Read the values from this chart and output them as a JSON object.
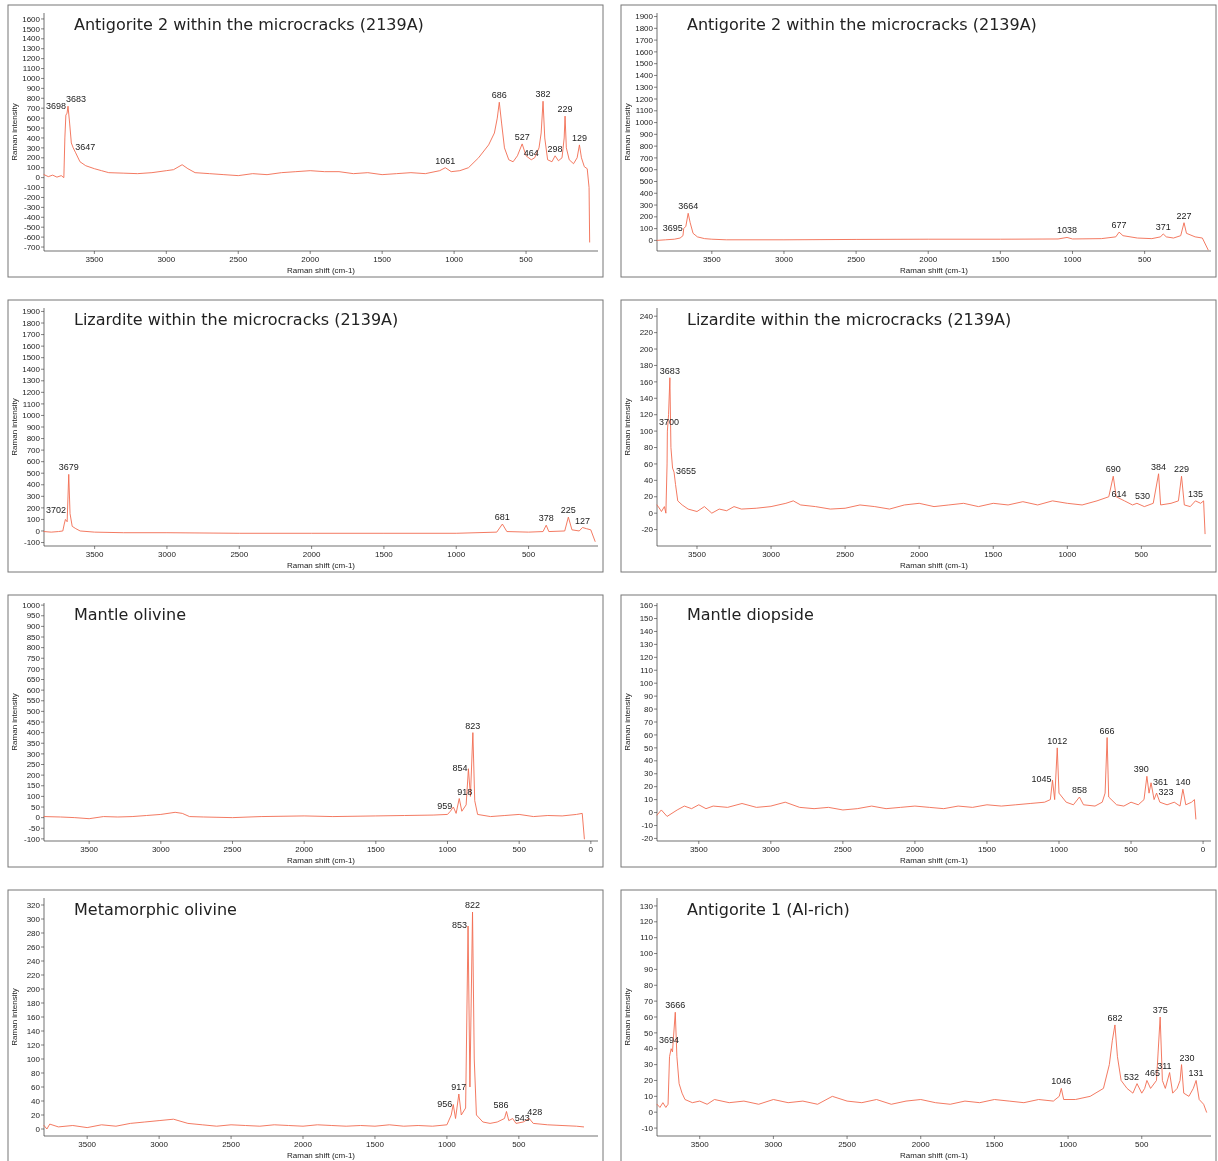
{
  "chart_data": [
    {
      "type": "line",
      "title": "Antigorite 2 within the microcracks (2139A)",
      "xlabel": "Raman shift (cm-1)",
      "ylabel": "Raman intensity",
      "xlim": [
        3850,
        0
      ],
      "ylim": [
        -740,
        1660
      ],
      "xticks": [
        3500,
        3000,
        2500,
        2000,
        1500,
        1000,
        500
      ],
      "yticks": [
        -700,
        -600,
        -500,
        -400,
        -300,
        -200,
        -100,
        0,
        100,
        200,
        300,
        400,
        500,
        600,
        700,
        800,
        900,
        1000,
        1100,
        1200,
        1300,
        1400,
        1500,
        1600
      ],
      "series": [
        {
          "color": "#f26b50",
          "x": [
            3850,
            3820,
            3790,
            3760,
            3730,
            3712,
            3705,
            3698,
            3690,
            3683,
            3672,
            3660,
            3647,
            3630,
            3600,
            3560,
            3500,
            3450,
            3400,
            3300,
            3200,
            3100,
            3000,
            2950,
            2890,
            2850,
            2800,
            2700,
            2600,
            2500,
            2400,
            2300,
            2200,
            2100,
            2000,
            1900,
            1800,
            1700,
            1600,
            1500,
            1400,
            1300,
            1200,
            1100,
            1061,
            1020,
            960,
            900,
            830,
            760,
            720,
            700,
            686,
            670,
            650,
            620,
            590,
            560,
            527,
            500,
            464,
            440,
            410,
            395,
            382,
            370,
            350,
            320,
            298,
            275,
            250,
            235,
            229,
            220,
            200,
            170,
            145,
            129,
            115,
            95,
            75,
            62,
            58
          ],
          "values": [
            30,
            10,
            25,
            5,
            20,
            0,
            400,
            630,
            650,
            720,
            550,
            350,
            300,
            250,
            160,
            120,
            90,
            70,
            50,
            45,
            40,
            50,
            70,
            80,
            130,
            90,
            50,
            40,
            30,
            20,
            40,
            30,
            50,
            60,
            70,
            60,
            60,
            40,
            50,
            30,
            40,
            50,
            40,
            70,
            100,
            60,
            70,
            100,
            200,
            330,
            450,
            600,
            760,
            550,
            300,
            180,
            160,
            220,
            340,
            220,
            180,
            200,
            300,
            450,
            770,
            400,
            180,
            160,
            220,
            170,
            200,
            400,
            620,
            300,
            180,
            140,
            200,
            330,
            200,
            110,
            90,
            -100,
            -650
          ]
        }
      ],
      "annotations": [
        {
          "text": "3683",
          "x": 3683,
          "y": 720
        },
        {
          "text": "3698",
          "x": 3698,
          "y": 630
        },
        {
          "text": "3647",
          "x": 3647,
          "y": 300
        },
        {
          "text": "1061",
          "x": 1061,
          "y": 100
        },
        {
          "text": "686",
          "x": 686,
          "y": 760
        },
        {
          "text": "527",
          "x": 527,
          "y": 340
        },
        {
          "text": "464",
          "x": 464,
          "y": 180
        },
        {
          "text": "382",
          "x": 382,
          "y": 770
        },
        {
          "text": "298",
          "x": 298,
          "y": 220
        },
        {
          "text": "229",
          "x": 229,
          "y": 620
        },
        {
          "text": "129",
          "x": 129,
          "y": 330
        }
      ]
    },
    {
      "type": "line",
      "title": "Antigorite 2 within the microcracks (2139A)",
      "xlabel": "Raman shift (cm-1)",
      "ylabel": "Raman intensity",
      "xlim": [
        3880,
        40
      ],
      "ylim": [
        -90,
        1930
      ],
      "xticks": [
        3500,
        3000,
        2500,
        2000,
        1500,
        1000,
        500
      ],
      "yticks": [
        0,
        100,
        200,
        300,
        400,
        500,
        600,
        700,
        800,
        900,
        1000,
        1100,
        1200,
        1300,
        1400,
        1500,
        1600,
        1700,
        1800,
        1900
      ],
      "series": [
        {
          "color": "#f26b50",
          "x": [
            3880,
            3820,
            3760,
            3720,
            3700,
            3695,
            3680,
            3664,
            3650,
            3630,
            3600,
            3550,
            3500,
            3400,
            3000,
            2500,
            2000,
            1500,
            1100,
            1038,
            1000,
            800,
            700,
            677,
            650,
            550,
            450,
            390,
            371,
            350,
            300,
            250,
            227,
            210,
            150,
            100,
            60
          ],
          "values": [
            0,
            5,
            10,
            20,
            40,
            100,
            120,
            230,
            150,
            60,
            30,
            15,
            10,
            5,
            5,
            8,
            10,
            10,
            12,
            25,
            12,
            15,
            30,
            70,
            40,
            20,
            15,
            30,
            55,
            30,
            20,
            40,
            150,
            60,
            30,
            20,
            -80
          ]
        }
      ],
      "annotations": [
        {
          "text": "3664",
          "x": 3664,
          "y": 230
        },
        {
          "text": "3695",
          "x": 3695,
          "y": 100
        },
        {
          "text": "1038",
          "x": 1038,
          "y": 25
        },
        {
          "text": "677",
          "x": 677,
          "y": 70
        },
        {
          "text": "371",
          "x": 371,
          "y": 55
        },
        {
          "text": "227",
          "x": 227,
          "y": 150
        }
      ]
    },
    {
      "type": "line",
      "title": "Lizardite within the microcracks (2139A)",
      "xlabel": "Raman shift (cm-1)",
      "ylabel": "Raman intensity",
      "xlim": [
        3850,
        20
      ],
      "ylim": [
        -130,
        1930
      ],
      "xticks": [
        3500,
        3000,
        2500,
        2000,
        1500,
        1000,
        500
      ],
      "yticks": [
        -100,
        0,
        100,
        200,
        300,
        400,
        500,
        600,
        700,
        800,
        900,
        1000,
        1100,
        1200,
        1300,
        1400,
        1500,
        1600,
        1700,
        1800,
        1900
      ],
      "series": [
        {
          "color": "#f26b50",
          "x": [
            3850,
            3800,
            3750,
            3720,
            3710,
            3702,
            3690,
            3679,
            3670,
            3655,
            3630,
            3600,
            3500,
            3300,
            3000,
            2500,
            2000,
            1500,
            1000,
            720,
            681,
            650,
            500,
            400,
            378,
            360,
            250,
            225,
            200,
            150,
            127,
            100,
            70,
            40
          ],
          "values": [
            -5,
            -10,
            -5,
            0,
            60,
            100,
            80,
            490,
            150,
            40,
            20,
            0,
            -10,
            -15,
            -15,
            -20,
            -20,
            -20,
            -20,
            -10,
            60,
            -5,
            -10,
            -5,
            50,
            -5,
            0,
            120,
            10,
            0,
            30,
            20,
            10,
            -90
          ]
        }
      ],
      "annotations": [
        {
          "text": "3679",
          "x": 3679,
          "y": 490
        },
        {
          "text": "3702",
          "x": 3702,
          "y": 100
        },
        {
          "text": "681",
          "x": 681,
          "y": 60
        },
        {
          "text": "378",
          "x": 378,
          "y": 50
        },
        {
          "text": "225",
          "x": 225,
          "y": 120
        },
        {
          "text": "127",
          "x": 127,
          "y": 30
        }
      ]
    },
    {
      "type": "line",
      "title": "Lizardite within the microcracks (2139A)",
      "xlabel": "Raman shift (cm-1)",
      "ylabel": "Raman intensity",
      "xlim": [
        3770,
        30
      ],
      "ylim": [
        -40,
        250
      ],
      "xticks": [
        3500,
        3000,
        2500,
        2000,
        1500,
        1000,
        500
      ],
      "yticks": [
        -20,
        0,
        20,
        40,
        60,
        80,
        100,
        120,
        140,
        160,
        180,
        200,
        220,
        240
      ],
      "series": [
        {
          "color": "#f26b50",
          "x": [
            3770,
            3750,
            3740,
            3720,
            3710,
            3702,
            3700,
            3692,
            3683,
            3676,
            3665,
            3655,
            3645,
            3630,
            3600,
            3560,
            3500,
            3450,
            3400,
            3350,
            3300,
            3250,
            3200,
            3100,
            3000,
            2900,
            2850,
            2800,
            2700,
            2600,
            2500,
            2400,
            2300,
            2200,
            2100,
            2000,
            1900,
            1800,
            1700,
            1600,
            1500,
            1400,
            1300,
            1200,
            1100,
            1000,
            900,
            800,
            720,
            690,
            670,
            614,
            560,
            530,
            480,
            420,
            384,
            370,
            300,
            250,
            229,
            210,
            170,
            135,
            100,
            80,
            70
          ],
          "values": [
            10,
            5,
            2,
            8,
            0,
            60,
            100,
            120,
            165,
            80,
            55,
            50,
            35,
            15,
            10,
            5,
            2,
            8,
            0,
            5,
            3,
            8,
            5,
            6,
            8,
            12,
            15,
            10,
            8,
            5,
            6,
            10,
            8,
            5,
            10,
            12,
            8,
            10,
            12,
            8,
            12,
            10,
            14,
            10,
            15,
            12,
            10,
            15,
            20,
            45,
            20,
            15,
            10,
            12,
            8,
            12,
            48,
            10,
            12,
            15,
            45,
            10,
            8,
            15,
            12,
            15,
            -25
          ]
        }
      ],
      "annotations": [
        {
          "text": "3683",
          "x": 3683,
          "y": 165
        },
        {
          "text": "3700",
          "x": 3700,
          "y": 100
        },
        {
          "text": "3655",
          "x": 3655,
          "y": 50
        },
        {
          "text": "690",
          "x": 690,
          "y": 45
        },
        {
          "text": "614",
          "x": 614,
          "y": 15
        },
        {
          "text": "530",
          "x": 530,
          "y": 12
        },
        {
          "text": "384",
          "x": 384,
          "y": 48
        },
        {
          "text": "229",
          "x": 229,
          "y": 45
        },
        {
          "text": "135",
          "x": 135,
          "y": 15
        }
      ]
    },
    {
      "type": "line",
      "title": "Mantle olivine",
      "xlabel": "Raman shift (cm-1)",
      "ylabel": "Raman intensity",
      "xlim": [
        3815,
        -50
      ],
      "ylim": [
        -110,
        1010
      ],
      "xticks": [
        3500,
        3000,
        2500,
        2000,
        1500,
        1000,
        500,
        0
      ],
      "yticks": [
        -100,
        -50,
        0,
        50,
        100,
        150,
        200,
        250,
        300,
        350,
        400,
        450,
        500,
        550,
        600,
        650,
        700,
        750,
        800,
        850,
        900,
        950,
        1000
      ],
      "series": [
        {
          "color": "#f26b50",
          "x": [
            3815,
            3700,
            3600,
            3500,
            3400,
            3300,
            3200,
            3100,
            3000,
            2900,
            2850,
            2800,
            2700,
            2500,
            2300,
            2000,
            1800,
            1500,
            1300,
            1100,
            1000,
            980,
            959,
            940,
            918,
            900,
            870,
            854,
            840,
            823,
            810,
            790,
            700,
            600,
            500,
            400,
            300,
            200,
            100,
            60,
            45
          ],
          "values": [
            5,
            3,
            0,
            -5,
            5,
            3,
            5,
            10,
            15,
            25,
            20,
            5,
            3,
            0,
            5,
            8,
            5,
            8,
            10,
            12,
            15,
            30,
            50,
            20,
            90,
            30,
            60,
            230,
            100,
            400,
            80,
            15,
            5,
            10,
            15,
            5,
            10,
            8,
            15,
            20,
            -100
          ]
        }
      ],
      "annotations": [
        {
          "text": "823",
          "x": 823,
          "y": 400
        },
        {
          "text": "854",
          "x": 854,
          "y": 230
        },
        {
          "text": "918",
          "x": 918,
          "y": 90
        },
        {
          "text": "959",
          "x": 959,
          "y": 50
        }
      ]
    },
    {
      "type": "line",
      "title": "Mantle diopside",
      "xlabel": "Raman shift (cm-1)",
      "ylabel": "Raman intensity",
      "xlim": [
        3790,
        -55
      ],
      "ylim": [
        -22,
        162
      ],
      "xticks": [
        3500,
        3000,
        2500,
        2000,
        1500,
        1000,
        500,
        0
      ],
      "yticks": [
        -20,
        -10,
        0,
        10,
        20,
        30,
        40,
        50,
        60,
        70,
        80,
        90,
        100,
        110,
        120,
        130,
        140,
        150,
        160
      ],
      "series": [
        {
          "color": "#f26b50",
          "x": [
            3790,
            3760,
            3720,
            3650,
            3600,
            3550,
            3500,
            3450,
            3400,
            3300,
            3200,
            3100,
            3000,
            2900,
            2800,
            2700,
            2600,
            2500,
            2400,
            2300,
            2200,
            2100,
            2000,
            1900,
            1800,
            1700,
            1600,
            1500,
            1400,
            1300,
            1200,
            1100,
            1060,
            1045,
            1030,
            1012,
            1000,
            950,
            900,
            858,
            830,
            750,
            700,
            680,
            666,
            655,
            600,
            550,
            500,
            450,
            410,
            390,
            375,
            361,
            340,
            323,
            300,
            250,
            200,
            160,
            140,
            120,
            80,
            60,
            50
          ],
          "values": [
            -2,
            2,
            -3,
            2,
            5,
            3,
            6,
            3,
            5,
            4,
            7,
            4,
            5,
            8,
            4,
            3,
            4,
            2,
            3,
            5,
            3,
            4,
            5,
            4,
            3,
            5,
            4,
            6,
            5,
            6,
            7,
            8,
            10,
            25,
            10,
            50,
            15,
            8,
            6,
            12,
            6,
            5,
            8,
            15,
            58,
            12,
            6,
            5,
            8,
            6,
            10,
            28,
            15,
            23,
            10,
            15,
            8,
            6,
            8,
            5,
            18,
            6,
            8,
            10,
            -5
          ]
        }
      ],
      "annotations": [
        {
          "text": "1012",
          "x": 1012,
          "y": 50
        },
        {
          "text": "1045",
          "x": 1045,
          "y": 25
        },
        {
          "text": "858",
          "x": 858,
          "y": 12
        },
        {
          "text": "666",
          "x": 666,
          "y": 58
        },
        {
          "text": "390",
          "x": 390,
          "y": 28
        },
        {
          "text": "361",
          "x": 361,
          "y": 23
        },
        {
          "text": "323",
          "x": 323,
          "y": 15
        },
        {
          "text": "140",
          "x": 140,
          "y": 18
        }
      ]
    },
    {
      "type": "line",
      "title": "Metamorphic olivine",
      "xlabel": "Raman shift (cm-1)",
      "ylabel": "Raman intensity",
      "xlim": [
        3800,
        -50
      ],
      "ylim": [
        -10,
        330
      ],
      "xticks": [
        3500,
        3000,
        2500,
        2000,
        1500,
        1000,
        500
      ],
      "yticks": [
        0,
        20,
        40,
        60,
        80,
        100,
        120,
        140,
        160,
        180,
        200,
        220,
        240,
        260,
        280,
        300,
        320
      ],
      "series": [
        {
          "color": "#f26b50",
          "x": [
            3800,
            3780,
            3760,
            3700,
            3600,
            3500,
            3400,
            3300,
            3200,
            3100,
            3000,
            2900,
            2800,
            2700,
            2600,
            2500,
            2400,
            2300,
            2200,
            2100,
            2000,
            1900,
            1800,
            1700,
            1600,
            1500,
            1400,
            1300,
            1200,
            1100,
            1000,
            970,
            956,
            940,
            917,
            900,
            870,
            853,
            840,
            822,
            810,
            795,
            750,
            700,
            650,
            600,
            586,
            570,
            543,
            520,
            470,
            428,
            400,
            300,
            200,
            100,
            50
          ],
          "values": [
            5,
            0,
            7,
            3,
            5,
            2,
            6,
            4,
            8,
            10,
            12,
            14,
            8,
            6,
            4,
            6,
            5,
            4,
            6,
            5,
            4,
            6,
            5,
            4,
            5,
            4,
            6,
            4,
            5,
            4,
            6,
            20,
            35,
            15,
            50,
            20,
            30,
            290,
            60,
            310,
            100,
            20,
            10,
            8,
            10,
            15,
            25,
            12,
            15,
            8,
            10,
            15,
            8,
            6,
            5,
            4,
            3
          ]
        }
      ],
      "annotations": [
        {
          "text": "822",
          "x": 822,
          "y": 310
        },
        {
          "text": "853",
          "x": 853,
          "y": 290
        },
        {
          "text": "917",
          "x": 917,
          "y": 50
        },
        {
          "text": "956",
          "x": 956,
          "y": 35
        },
        {
          "text": "586",
          "x": 586,
          "y": 25
        },
        {
          "text": "543",
          "x": 543,
          "y": 15
        },
        {
          "text": "428",
          "x": 428,
          "y": 15
        }
      ]
    },
    {
      "type": "line",
      "title": "Antigorite 1 (Al-rich)",
      "xlabel": "Raman shift (cm-1)",
      "ylabel": "Raman intensity",
      "xlim": [
        3790,
        30
      ],
      "ylim": [
        -15,
        135
      ],
      "xticks": [
        3500,
        3000,
        2500,
        2000,
        1500,
        1000,
        500
      ],
      "yticks": [
        -10,
        0,
        10,
        20,
        30,
        40,
        50,
        60,
        70,
        80,
        90,
        100,
        110,
        120,
        130
      ],
      "series": [
        {
          "color": "#f26b50",
          "x": [
            3790,
            3770,
            3750,
            3730,
            3715,
            3705,
            3694,
            3685,
            3666,
            3655,
            3640,
            3620,
            3600,
            3550,
            3500,
            3450,
            3400,
            3300,
            3200,
            3100,
            3000,
            2900,
            2800,
            2700,
            2600,
            2500,
            2400,
            2300,
            2200,
            2100,
            2000,
            1900,
            1800,
            1700,
            1600,
            1500,
            1400,
            1300,
            1200,
            1100,
            1060,
            1046,
            1030,
            950,
            850,
            760,
            720,
            700,
            682,
            665,
            640,
            600,
            560,
            532,
            500,
            480,
            465,
            440,
            400,
            375,
            360,
            340,
            311,
            290,
            260,
            240,
            230,
            215,
            180,
            150,
            131,
            110,
            80,
            60
          ],
          "values": [
            5,
            3,
            6,
            3,
            5,
            35,
            40,
            38,
            63,
            35,
            18,
            12,
            8,
            6,
            7,
            5,
            8,
            6,
            7,
            5,
            8,
            6,
            7,
            5,
            10,
            7,
            6,
            8,
            5,
            7,
            8,
            6,
            5,
            7,
            6,
            8,
            7,
            6,
            8,
            7,
            10,
            15,
            8,
            8,
            10,
            15,
            30,
            45,
            55,
            35,
            20,
            15,
            12,
            18,
            12,
            15,
            20,
            15,
            20,
            60,
            20,
            15,
            25,
            12,
            15,
            20,
            30,
            12,
            10,
            15,
            20,
            8,
            5,
            0
          ]
        }
      ],
      "annotations": [
        {
          "text": "3666",
          "x": 3666,
          "y": 63
        },
        {
          "text": "3694",
          "x": 3694,
          "y": 40
        },
        {
          "text": "1046",
          "x": 1046,
          "y": 15
        },
        {
          "text": "682",
          "x": 682,
          "y": 55
        },
        {
          "text": "532",
          "x": 532,
          "y": 18
        },
        {
          "text": "465",
          "x": 465,
          "y": 20
        },
        {
          "text": "375",
          "x": 375,
          "y": 60
        },
        {
          "text": "311",
          "x": 311,
          "y": 25
        },
        {
          "text": "230",
          "x": 230,
          "y": 30
        },
        {
          "text": "131",
          "x": 131,
          "y": 20
        }
      ]
    }
  ]
}
